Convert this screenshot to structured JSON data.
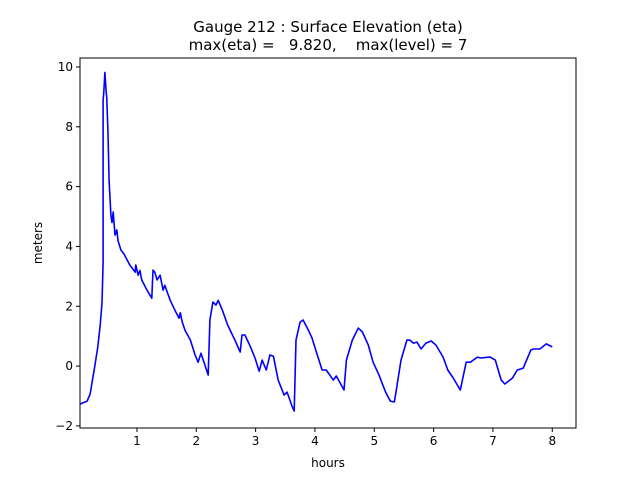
{
  "chart_data": {
    "type": "line",
    "title": "Gauge 212 : Surface Elevation (eta)",
    "subtitle": "max(eta) =   9.820,    max(level) = 7",
    "xlabel": "hours",
    "ylabel": "meters",
    "xlim": [
      0.04,
      8.4
    ],
    "ylim": [
      -2.07,
      10.3
    ],
    "xticks": [
      1,
      2,
      3,
      4,
      5,
      6,
      7,
      8
    ],
    "yticks": [
      -2,
      0,
      2,
      4,
      6,
      8,
      10
    ],
    "grid": false,
    "line_color": "#0000ff",
    "series": [
      {
        "x": [
          0.04,
          0.16,
          0.21,
          0.29,
          0.34,
          0.38,
          0.41,
          0.43,
          0.43,
          0.43,
          0.44,
          0.46,
          0.48,
          0.49,
          0.51,
          0.53,
          0.56,
          0.58,
          0.6,
          0.63,
          0.66,
          0.68,
          0.73,
          0.78,
          0.88,
          0.97,
          0.98,
          1.02,
          1.05,
          1.08,
          1.17,
          1.25,
          1.27,
          1.3,
          1.34,
          1.39,
          1.44,
          1.47,
          1.56,
          1.64,
          1.71,
          1.73,
          1.76,
          1.81,
          1.9,
          1.98,
          2.03,
          2.08,
          2.13,
          2.2,
          2.23,
          2.28,
          2.33,
          2.37,
          2.44,
          2.53,
          2.65,
          2.74,
          2.77,
          2.82,
          2.9,
          2.99,
          3.06,
          3.11,
          3.18,
          3.24,
          3.3,
          3.38,
          3.48,
          3.53,
          3.62,
          3.65,
          3.68,
          3.75,
          3.8,
          3.89,
          3.95,
          4.04,
          4.12,
          4.19,
          4.31,
          4.36,
          4.49,
          4.53,
          4.63,
          4.73,
          4.8,
          4.9,
          4.98,
          5.08,
          5.19,
          5.27,
          5.34,
          5.39,
          5.45,
          5.55,
          5.6,
          5.66,
          5.72,
          5.79,
          5.87,
          5.96,
          6.04,
          6.16,
          6.24,
          6.33,
          6.45,
          6.55,
          6.62,
          6.74,
          6.79,
          6.95,
          7.04,
          7.14,
          7.2,
          7.33,
          7.41,
          7.51,
          7.64,
          7.69,
          7.79,
          7.9,
          8.0
        ],
        "y": [
          -1.27,
          -1.17,
          -0.94,
          0.0,
          0.64,
          1.37,
          2.1,
          3.48,
          6.0,
          8.9,
          9.1,
          9.82,
          9.2,
          9.0,
          7.9,
          6.2,
          5.05,
          4.8,
          5.15,
          4.38,
          4.55,
          4.2,
          3.88,
          3.75,
          3.38,
          3.14,
          3.38,
          3.04,
          3.2,
          2.88,
          2.54,
          2.27,
          3.21,
          3.14,
          2.88,
          3.04,
          2.54,
          2.7,
          2.2,
          1.87,
          1.6,
          1.78,
          1.5,
          1.2,
          0.87,
          0.37,
          0.13,
          0.43,
          0.13,
          -0.3,
          1.54,
          2.14,
          2.04,
          2.2,
          1.87,
          1.37,
          0.87,
          0.47,
          1.04,
          1.04,
          0.7,
          0.27,
          -0.17,
          0.2,
          -0.13,
          0.37,
          0.33,
          -0.47,
          -0.97,
          -0.87,
          -1.37,
          -1.5,
          0.87,
          1.47,
          1.54,
          1.2,
          0.94,
          0.37,
          -0.13,
          -0.13,
          -0.47,
          -0.33,
          -0.8,
          0.2,
          0.87,
          1.27,
          1.14,
          0.7,
          0.13,
          -0.3,
          -0.87,
          -1.17,
          -1.2,
          -0.57,
          0.2,
          0.87,
          0.87,
          0.77,
          0.8,
          0.57,
          0.77,
          0.84,
          0.7,
          0.3,
          -0.13,
          -0.4,
          -0.8,
          0.13,
          0.13,
          0.3,
          0.27,
          0.3,
          0.2,
          -0.47,
          -0.6,
          -0.4,
          -0.13,
          -0.07,
          0.54,
          0.57,
          0.57,
          0.74,
          0.64
        ]
      }
    ]
  }
}
